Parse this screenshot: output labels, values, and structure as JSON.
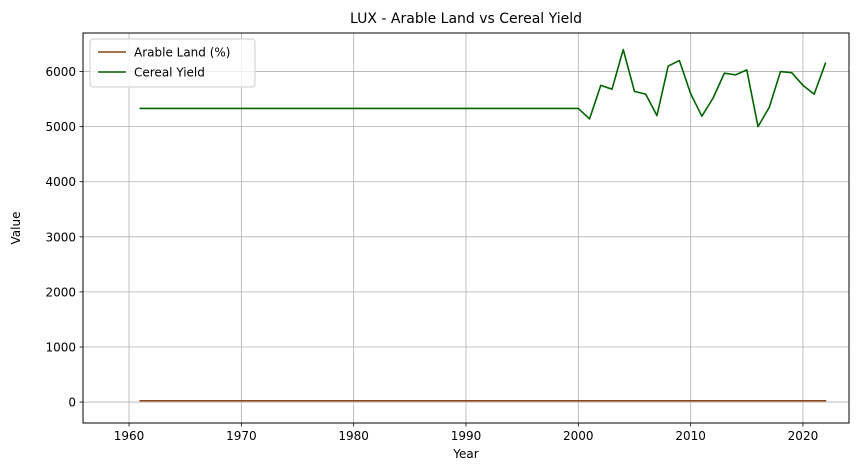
{
  "chart_data": {
    "type": "line",
    "title": "LUX - Arable Land vs Cereal Yield",
    "xlabel": "Year",
    "ylabel": "Value",
    "xlim": [
      1955.9,
      2024.1
    ],
    "ylim": [
      -380,
      6700
    ],
    "xticks": [
      1960,
      1970,
      1980,
      1990,
      2000,
      2010,
      2020
    ],
    "yticks": [
      0,
      1000,
      2000,
      3000,
      4000,
      5000,
      6000
    ],
    "grid": true,
    "legend_position": "top-left",
    "series": [
      {
        "name": "Arable Land (%)",
        "color": "#8b4513",
        "x": [
          1961,
          2022
        ],
        "y": [
          24,
          24
        ]
      },
      {
        "name": "Cereal Yield",
        "color": "#006400",
        "x": [
          1961,
          2000,
          2001,
          2002,
          2003,
          2004,
          2005,
          2006,
          2007,
          2008,
          2009,
          2010,
          2011,
          2012,
          2013,
          2014,
          2015,
          2016,
          2017,
          2018,
          2019,
          2020,
          2021,
          2022
        ],
        "y": [
          5330,
          5330,
          5140,
          5750,
          5680,
          6400,
          5640,
          5590,
          5200,
          6100,
          6200,
          5600,
          5190,
          5520,
          5970,
          5940,
          6030,
          5000,
          5350,
          6000,
          5980,
          5750,
          5590,
          6150
        ]
      }
    ]
  }
}
